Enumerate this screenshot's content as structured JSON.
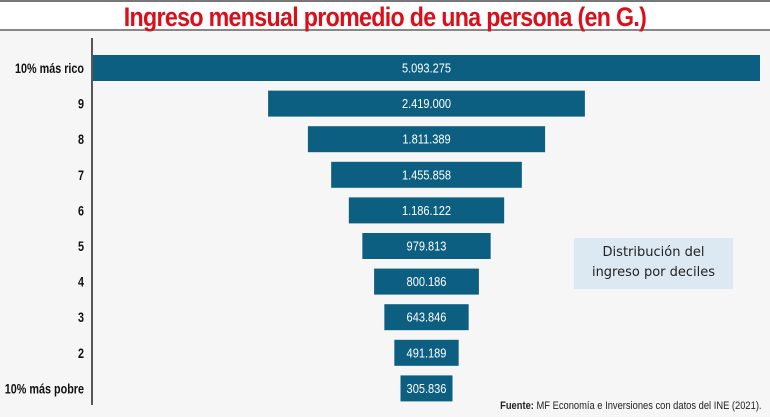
{
  "chart_data": {
    "type": "bar",
    "orientation": "horizontal-funnel",
    "title": "Ingreso mensual promedio de una persona (en G.)",
    "categories": [
      "10% más rico",
      "9",
      "8",
      "7",
      "6",
      "5",
      "4",
      "3",
      "2",
      "10% más pobre"
    ],
    "values": [
      5093275,
      2419000,
      1811389,
      1455858,
      1186122,
      979813,
      800186,
      643846,
      491189,
      305836
    ],
    "data_labels": [
      "5.093.275",
      "2.419.000",
      "1.811.389",
      "1.455.858",
      "1.186.122",
      "979.813",
      "800.186",
      "643.846",
      "491.189",
      "305.836"
    ],
    "annotation": "Distribución del ingreso por deciles",
    "bar_color": "#0d5f82",
    "title_color": "#d9101a",
    "grid": false
  },
  "annotation": {
    "line1": "Distribución del",
    "line2": "ingreso por deciles"
  },
  "source": {
    "label": "Fuente:",
    "text": " MF Economía e Inversiones con datos del INE (2021)."
  }
}
